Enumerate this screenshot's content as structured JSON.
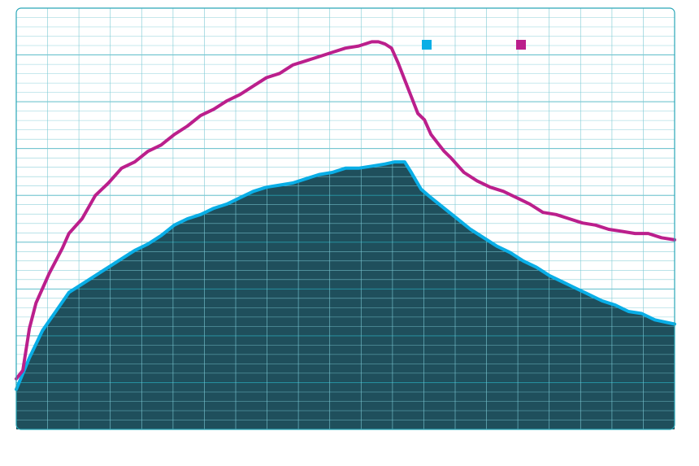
{
  "chart_data": {
    "type": "area",
    "title": "",
    "xlabel": "",
    "ylabel": "",
    "xlim": [
      0,
      100
    ],
    "ylim": [
      0,
      100
    ],
    "grid": true,
    "legend_position": "top-right",
    "series": [
      {
        "name": "",
        "style": "area",
        "color": "#0aaee6",
        "fill": "#1f4f5c",
        "x": [
          0,
          2,
          4,
          6,
          8,
          10,
          12,
          14,
          16,
          18,
          20,
          22,
          24,
          26,
          28,
          30,
          32,
          34,
          36,
          38,
          40,
          42,
          44,
          46,
          48,
          50,
          52,
          54,
          56,
          57.5,
          59,
          60,
          61.5,
          63,
          65,
          67,
          69,
          71,
          73,
          75,
          77,
          79,
          81,
          83,
          85,
          87,
          89,
          91,
          93,
          95,
          97,
          98.5,
          100
        ],
        "values": [
          9.5,
          17,
          23.5,
          28,
          32.5,
          34.5,
          36.5,
          38.5,
          40.5,
          42.5,
          44,
          46,
          48.5,
          50,
          51,
          52.5,
          53.5,
          55,
          56.5,
          57.5,
          58,
          58.5,
          59.5,
          60.5,
          61,
          62,
          62,
          62.5,
          63,
          63.5,
          63.5,
          61,
          57,
          55,
          52.5,
          50,
          47.5,
          45.5,
          43.5,
          42,
          40,
          38.5,
          36.5,
          35,
          33.5,
          32,
          30.5,
          29.5,
          28,
          27.5,
          26,
          25.5,
          25
        ]
      },
      {
        "name": "",
        "style": "line",
        "color": "#bb1f8c",
        "x": [
          0,
          1,
          2,
          3,
          4,
          5,
          6,
          7,
          8,
          10,
          12,
          14,
          16,
          18,
          20,
          22,
          24,
          26,
          28,
          30,
          32,
          34,
          36,
          38,
          40,
          42,
          44,
          46,
          48,
          50,
          52,
          54,
          55,
          56,
          57,
          58,
          59,
          60,
          61,
          62,
          63,
          64,
          65,
          66,
          68,
          70,
          72,
          74,
          76,
          78,
          80,
          82,
          84,
          86,
          88,
          90,
          92,
          94,
          96,
          98,
          100
        ],
        "values": [
          12,
          14,
          24,
          30,
          33.5,
          37,
          40,
          43,
          46.5,
          50,
          55.5,
          58.5,
          62,
          63.5,
          66,
          67.5,
          70,
          72,
          74.5,
          76,
          78,
          79.5,
          81.5,
          83.5,
          84.5,
          86.5,
          87.5,
          88.5,
          89.5,
          90.5,
          91,
          92,
          92,
          91.5,
          90.5,
          87,
          83,
          79,
          75,
          73.5,
          70,
          68,
          66,
          64.5,
          61,
          59,
          57.5,
          56.5,
          55,
          53.5,
          51.5,
          51,
          50,
          49,
          48.5,
          47.5,
          47,
          46.5,
          46.5,
          45.5,
          45
        ]
      }
    ]
  },
  "colors": {
    "grid_major": "#2aa7b8",
    "grid_minor": "#7cc9d4",
    "frame": "#2aa7b8",
    "area_fill": "#1f4f5c",
    "area_line": "#0aaee6",
    "line": "#bb1f8c"
  }
}
